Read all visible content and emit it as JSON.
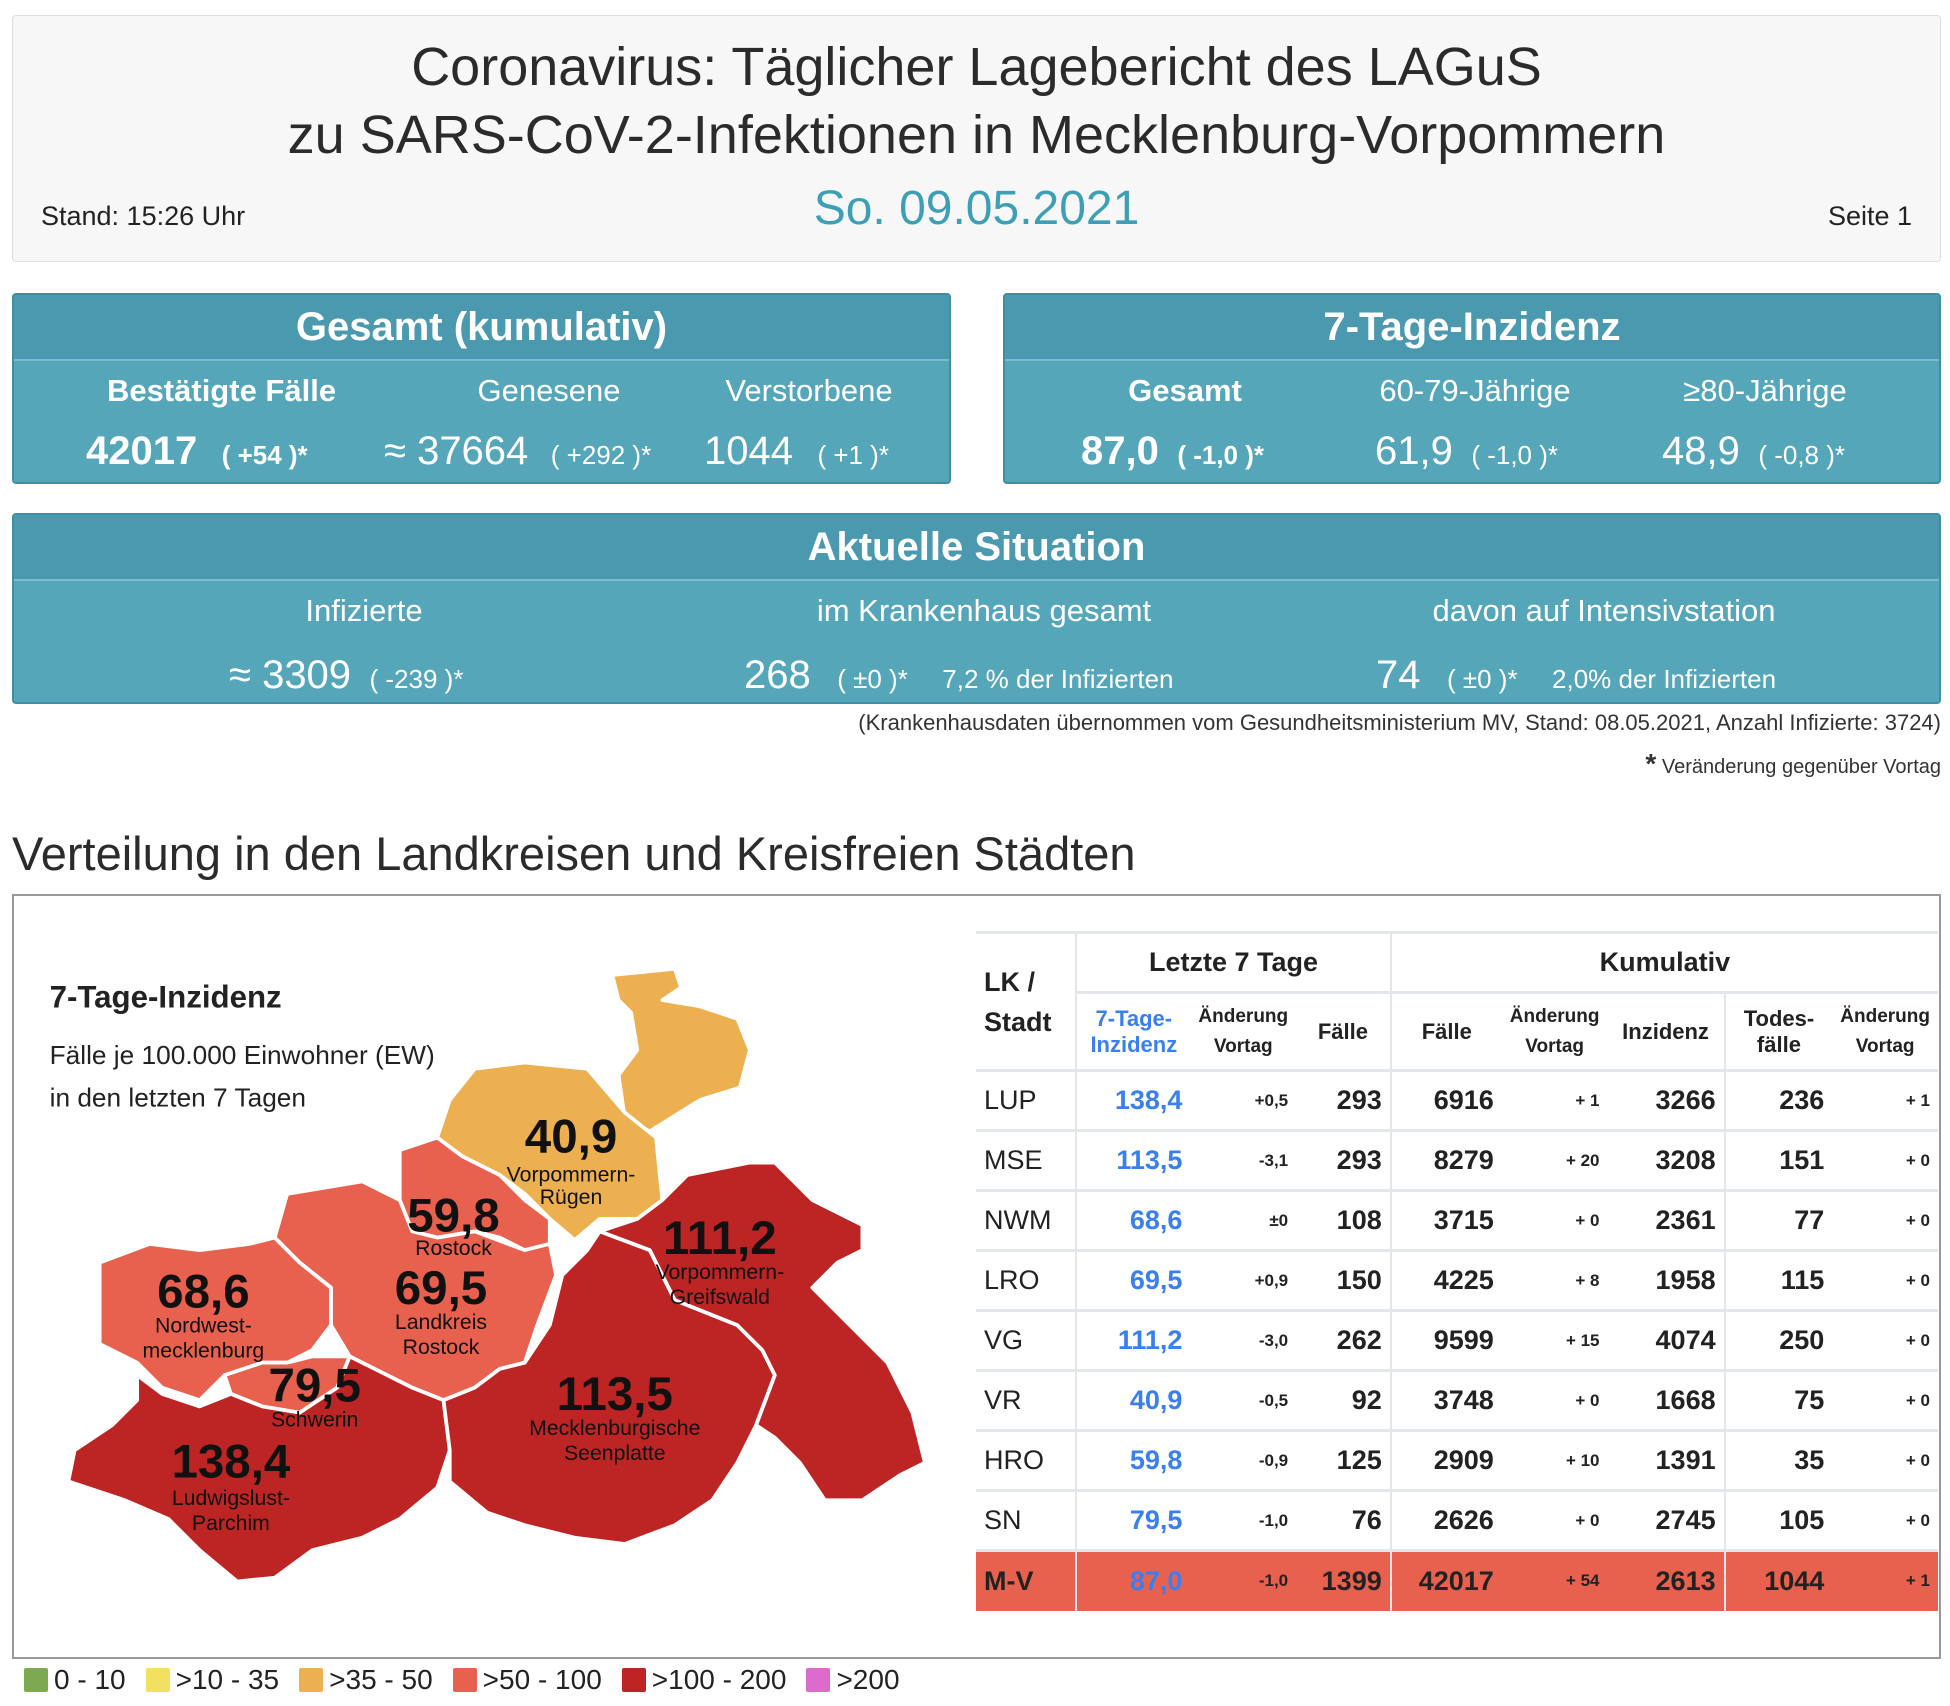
{
  "header": {
    "title_line1": "Coronavirus: Täglicher Lagebericht des LAGuS",
    "title_line2": "zu SARS-CoV-2-Infektionen in Mecklenburg-Vorpommern",
    "stand": "Stand: 15:26 Uhr",
    "date": "So. 09.05.2021",
    "page": "Seite 1"
  },
  "gesamt": {
    "title": "Gesamt (kumulativ)",
    "confirmed_label": "Bestätigte Fälle",
    "confirmed": "42017",
    "confirmed_change": "( +54 )*",
    "recovered_label": "Genesene",
    "recovered": "≈ 37664",
    "recovered_change": "( +292 )*",
    "deceased_label": "Verstorbene",
    "deceased": "1044",
    "deceased_change": "( +1 )*"
  },
  "inzidenz": {
    "title": "7-Tage-Inzidenz",
    "total_label": "Gesamt",
    "total": "87,0",
    "total_change": "( -1,0 )*",
    "age60_label": "60-79-Jährige",
    "age60": "61,9",
    "age60_change": "( -1,0 )*",
    "age80_label": "≥80-Jährige",
    "age80": "48,9",
    "age80_change": "( -0,8 )*"
  },
  "aktuell": {
    "title": "Aktuelle Situation",
    "infected_label": "Infizierte",
    "infected": "≈ 3309",
    "infected_change": "( -239 )*",
    "hospital_label": "im Krankenhaus gesamt",
    "hospital": "268",
    "hospital_change": "( ±0 )*",
    "hospital_pct": "7,2 % der Infizierten",
    "icu_label": "davon auf Intensivstation",
    "icu": "74",
    "icu_change": "( ±0 )*",
    "icu_pct": "2,0% der Infizierten"
  },
  "note": "(Krankenhausdaten übernommen vom Gesundheitsministerium MV, Stand: 08.05.2021, Anzahl Infizierte: 3724)",
  "footnote_star": "*",
  "footnote": "Veränderung gegenüber Vortag",
  "section_title": "Verteilung in den Landkreisen und Kreisfreien Städten",
  "map": {
    "title": "7-Tage-Inzidenz",
    "subtitle1": "Fälle je 100.000 Einwohner (EW)",
    "subtitle2": "in den letzten 7 Tagen",
    "regions": {
      "VR": {
        "value": "40,9",
        "name1": "Vorpommern-",
        "name2": "Rügen",
        "color": "#edb050"
      },
      "HRO": {
        "value": "59,8",
        "name1": "Rostock",
        "color": "#e8614f"
      },
      "LRO": {
        "value": "69,5",
        "name1": "Landkreis",
        "name2": "Rostock",
        "color": "#e8614f"
      },
      "NWM": {
        "value": "68,6",
        "name1": "Nordwest-",
        "name2": "mecklenburg",
        "color": "#e8614f"
      },
      "SN": {
        "value": "79,5",
        "name1": "Schwerin",
        "color": "#e8614f"
      },
      "LUP": {
        "value": "138,4",
        "name1": "Ludwigslust-",
        "name2": "Parchim",
        "color": "#bd2424"
      },
      "MSE": {
        "value": "113,5",
        "name1": "Mecklenburgische",
        "name2": "Seenplatte",
        "color": "#bd2424"
      },
      "VG": {
        "value": "111,2",
        "name1": "Vorpommern-",
        "name2": "Greifswald",
        "color": "#bd2424"
      }
    }
  },
  "table": {
    "col_lk": "LK / Stadt",
    "group_7": "Letzte 7 Tage",
    "group_kum": "Kumulativ",
    "col_inz": "7-Tage-Inzidenz",
    "col_aend": "Änderung Vortag",
    "col_faelle": "Fälle",
    "col_kfaelle": "Fälle",
    "col_kaend": "Änderung Vortag",
    "col_kinz": "Inzidenz",
    "col_tote": "Todes-fälle",
    "col_taend": "Änderung Vortag",
    "rows": [
      {
        "lk": "LUP",
        "inz": "138,4",
        "aend": "+0,5",
        "faelle": "293",
        "kfaelle": "6916",
        "kaend": "+ 1",
        "kinz": "3266",
        "tote": "236",
        "taend": "+ 1"
      },
      {
        "lk": "MSE",
        "inz": "113,5",
        "aend": "-3,1",
        "faelle": "293",
        "kfaelle": "8279",
        "kaend": "+ 20",
        "kinz": "3208",
        "tote": "151",
        "taend": "+ 0"
      },
      {
        "lk": "NWM",
        "inz": "68,6",
        "aend": "±0",
        "faelle": "108",
        "kfaelle": "3715",
        "kaend": "+ 0",
        "kinz": "2361",
        "tote": "77",
        "taend": "+ 0"
      },
      {
        "lk": "LRO",
        "inz": "69,5",
        "aend": "+0,9",
        "faelle": "150",
        "kfaelle": "4225",
        "kaend": "+ 8",
        "kinz": "1958",
        "tote": "115",
        "taend": "+ 0"
      },
      {
        "lk": "VG",
        "inz": "111,2",
        "aend": "-3,0",
        "faelle": "262",
        "kfaelle": "9599",
        "kaend": "+ 15",
        "kinz": "4074",
        "tote": "250",
        "taend": "+ 0"
      },
      {
        "lk": "VR",
        "inz": "40,9",
        "aend": "-0,5",
        "faelle": "92",
        "kfaelle": "3748",
        "kaend": "+ 0",
        "kinz": "1668",
        "tote": "75",
        "taend": "+ 0"
      },
      {
        "lk": "HRO",
        "inz": "59,8",
        "aend": "-0,9",
        "faelle": "125",
        "kfaelle": "2909",
        "kaend": "+ 10",
        "kinz": "1391",
        "tote": "35",
        "taend": "+ 0"
      },
      {
        "lk": "SN",
        "inz": "79,5",
        "aend": "-1,0",
        "faelle": "76",
        "kfaelle": "2626",
        "kaend": "+ 0",
        "kinz": "2745",
        "tote": "105",
        "taend": "+ 0"
      }
    ],
    "total": {
      "lk": "M-V",
      "inz": "87,0",
      "aend": "-1,0",
      "faelle": "1399",
      "kfaelle": "42017",
      "kaend": "+ 54",
      "kinz": "2613",
      "tote": "1044",
      "taend": "+ 1"
    }
  },
  "legend": [
    {
      "label": "0 - 10",
      "color": "#7daa50"
    },
    {
      "label": ">10 - 35",
      "color": "#f2e060"
    },
    {
      "label": ">35 - 50",
      "color": "#edb050"
    },
    {
      "label": ">50 - 100",
      "color": "#e8614f"
    },
    {
      "label": ">100 - 200",
      "color": "#bd2424"
    },
    {
      "label": ">200",
      "color": "#dc6ccc"
    }
  ]
}
